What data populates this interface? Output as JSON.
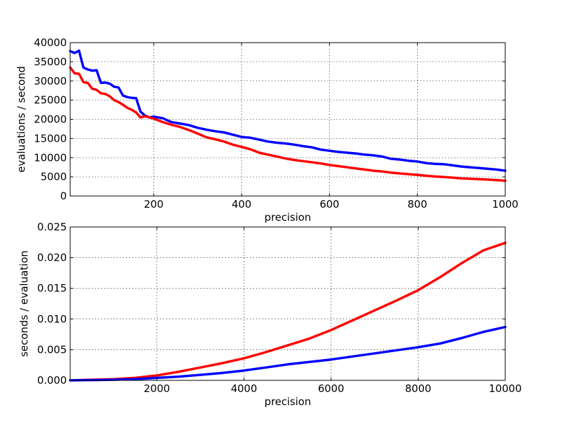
{
  "chart_data": [
    {
      "type": "line",
      "title": "",
      "xlabel": "precision",
      "ylabel": "evaluations / second",
      "xlim": [
        10,
        1000
      ],
      "ylim": [
        0,
        40000
      ],
      "xticks": [
        200,
        400,
        600,
        800,
        1000
      ],
      "xtick_labels": [
        "200",
        "400",
        "600",
        "800",
        "1000"
      ],
      "yticks": [
        0,
        5000,
        10000,
        15000,
        20000,
        25000,
        30000,
        35000,
        40000
      ],
      "ytick_labels": [
        "0",
        "5000",
        "10000",
        "15000",
        "20000",
        "25000",
        "30000",
        "35000",
        "40000"
      ],
      "grid": true,
      "series": [
        {
          "color": "#0000ff",
          "x": [
            10,
            20,
            30,
            40,
            50,
            60,
            70,
            80,
            90,
            100,
            110,
            120,
            130,
            140,
            150,
            160,
            170,
            180,
            190,
            200,
            220,
            240,
            260,
            280,
            300,
            320,
            340,
            360,
            380,
            400,
            420,
            440,
            460,
            480,
            500,
            520,
            540,
            560,
            580,
            600,
            620,
            640,
            660,
            680,
            700,
            720,
            740,
            760,
            780,
            800,
            820,
            840,
            860,
            880,
            900,
            920,
            940,
            960,
            980,
            1000
          ],
          "values": [
            37800,
            37300,
            37900,
            33500,
            33000,
            32700,
            32800,
            29500,
            29600,
            29300,
            28500,
            28300,
            26200,
            25800,
            25600,
            25500,
            22000,
            21000,
            20500,
            20700,
            20300,
            19300,
            18900,
            18500,
            17800,
            17300,
            16900,
            16600,
            16000,
            15400,
            15200,
            14700,
            14200,
            13900,
            13700,
            13400,
            13000,
            12700,
            12100,
            11800,
            11500,
            11300,
            11100,
            10800,
            10600,
            10300,
            9700,
            9500,
            9200,
            9000,
            8600,
            8400,
            8300,
            8000,
            7700,
            7500,
            7300,
            7100,
            6900,
            6600
          ]
        },
        {
          "color": "#ff0000",
          "x": [
            10,
            20,
            30,
            40,
            50,
            60,
            70,
            80,
            90,
            100,
            110,
            120,
            130,
            140,
            150,
            160,
            170,
            180,
            190,
            200,
            220,
            240,
            260,
            280,
            300,
            320,
            340,
            360,
            380,
            400,
            420,
            440,
            460,
            480,
            500,
            520,
            540,
            560,
            580,
            600,
            620,
            640,
            660,
            680,
            700,
            720,
            740,
            760,
            780,
            800,
            820,
            840,
            860,
            880,
            900,
            920,
            940,
            960,
            980,
            1000
          ],
          "values": [
            33500,
            32000,
            31900,
            29700,
            29500,
            28000,
            27700,
            26800,
            26600,
            26000,
            25000,
            24500,
            23800,
            23000,
            22500,
            21800,
            20500,
            20800,
            20500,
            20200,
            19300,
            18600,
            18000,
            17200,
            16300,
            15300,
            14800,
            14200,
            13400,
            12800,
            12200,
            11300,
            10800,
            10300,
            9800,
            9400,
            9100,
            8800,
            8500,
            8100,
            7800,
            7500,
            7200,
            6900,
            6600,
            6400,
            6100,
            5900,
            5700,
            5500,
            5300,
            5100,
            4950,
            4800,
            4600,
            4500,
            4400,
            4300,
            4150,
            4000
          ]
        }
      ]
    },
    {
      "type": "line",
      "title": "",
      "xlabel": "precision",
      "ylabel": "seconds / evaluation",
      "xlim": [
        10,
        10000
      ],
      "ylim": [
        0,
        0.025
      ],
      "xticks": [
        2000,
        4000,
        6000,
        8000,
        10000
      ],
      "xtick_labels": [
        "2000",
        "4000",
        "6000",
        "8000",
        "10000"
      ],
      "yticks": [
        0,
        0.005,
        0.01,
        0.015,
        0.02,
        0.025
      ],
      "ytick_labels": [
        "0.000",
        "0.005",
        "0.010",
        "0.015",
        "0.020",
        "0.025"
      ],
      "grid": true,
      "series": [
        {
          "color": "#ff0000",
          "x": [
            10,
            500,
            1000,
            1500,
            2000,
            2500,
            3000,
            3500,
            4000,
            4500,
            5000,
            5500,
            6000,
            6500,
            7000,
            7500,
            8000,
            8500,
            9000,
            9500,
            10000
          ],
          "values": [
            0.0,
            0.0001,
            0.0002,
            0.0004,
            0.0008,
            0.0014,
            0.0021,
            0.0028,
            0.0036,
            0.0046,
            0.0057,
            0.0068,
            0.0082,
            0.0098,
            0.0114,
            0.013,
            0.0147,
            0.0168,
            0.0191,
            0.0212,
            0.0224
          ]
        },
        {
          "color": "#0000ff",
          "x": [
            10,
            500,
            1000,
            1500,
            2000,
            2500,
            3000,
            3500,
            4000,
            4500,
            5000,
            5500,
            6000,
            6500,
            7000,
            7500,
            8000,
            8500,
            9000,
            9500,
            10000
          ],
          "values": [
            0.0,
            5e-05,
            0.0001,
            0.0002,
            0.0004,
            0.0006,
            0.0009,
            0.0012,
            0.0016,
            0.0021,
            0.0026,
            0.003,
            0.0034,
            0.0039,
            0.0044,
            0.0049,
            0.0054,
            0.006,
            0.0069,
            0.0079,
            0.0087
          ]
        }
      ]
    }
  ]
}
